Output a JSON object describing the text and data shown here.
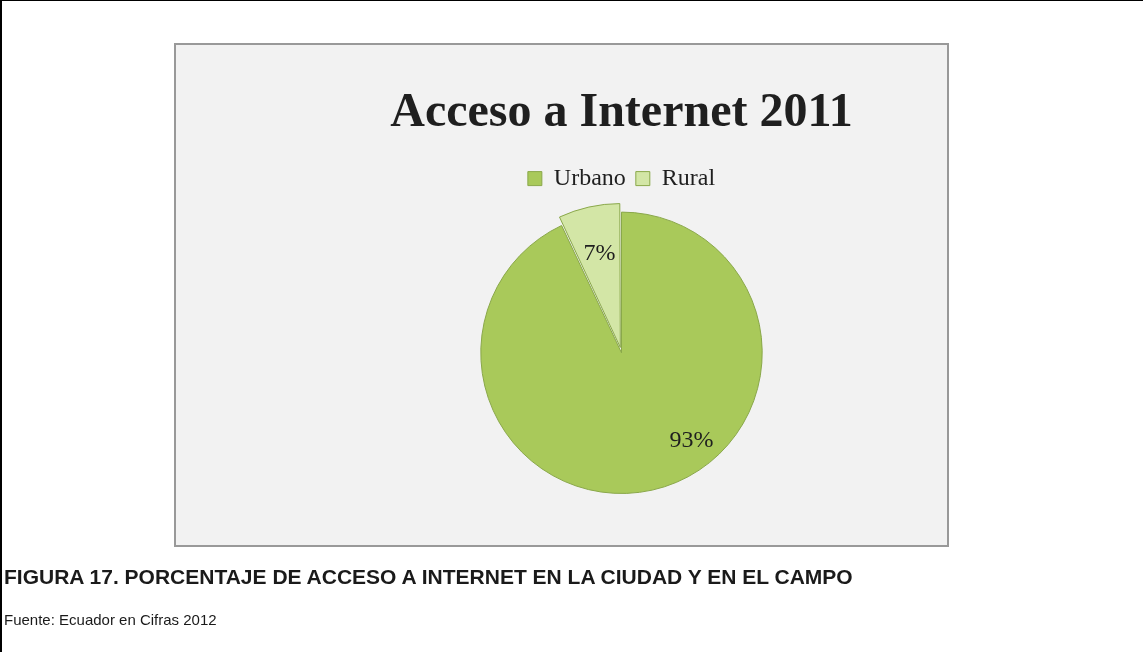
{
  "chart_data": {
    "type": "pie",
    "title": "Acceso a Internet 2011",
    "categories": [
      "Urbano",
      "Rural"
    ],
    "values": [
      93,
      7
    ],
    "colors": [
      "#a9c95a",
      "#d3e6a6"
    ],
    "value_labels": [
      "93%",
      "7%"
    ],
    "legend": "top",
    "annotations": [
      "FIGURA 17. PORCENTAJE DE ACCESO A INTERNET EN LA CIUDAD Y EN EL CAMPO",
      "Fuente: Ecuador en Cifras 2012"
    ]
  }
}
